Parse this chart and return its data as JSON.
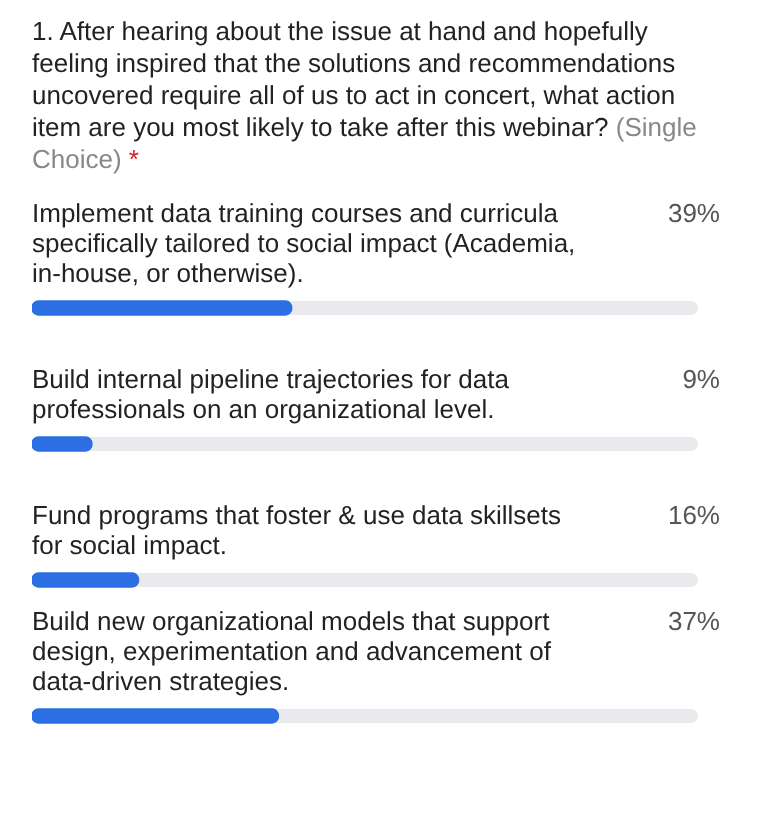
{
  "chart_data": {
    "type": "bar",
    "orientation": "horizontal",
    "title": "1. After hearing about the issue at hand and hopefully feeling inspired that the solutions and recommendations uncovered require all of us to act in concert, what action item are you most likely to take after this webinar?",
    "subtitle": "(Single Choice)",
    "annotations": [
      "*"
    ],
    "categories": [
      "Implement data training courses and curricula specifically tailored to social impact (Academia, in-house, or otherwise).",
      "Build internal pipeline trajectories for data professionals on an organizational level.",
      "Fund programs that foster & use data skillsets for social impact.",
      "Build new organizational models that support design, experimentation and advancement of data-driven strategies."
    ],
    "values": [
      39,
      9,
      16,
      37
    ],
    "value_labels": [
      "39%",
      "9%",
      "16%",
      "37%"
    ],
    "color": "#2b6fe3",
    "xlim": [
      0,
      100
    ],
    "legend": false
  }
}
